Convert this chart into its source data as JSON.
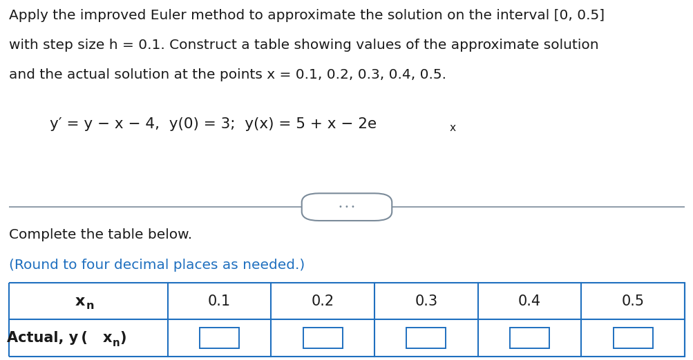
{
  "title_lines": [
    "Apply the improved Euler method to approximate the solution on the interval [0, 0.5]",
    "with step size h = 0.1. Construct a table showing values of the approximate solution",
    "and the actual solution at the points x = 0.1, 0.2, 0.3, 0.4, 0.5."
  ],
  "complete_text": "Complete the table below.",
  "round_text": "(Round to four decimal places as needed.)",
  "table_col_headers": [
    "0.1",
    "0.2",
    "0.3",
    "0.4",
    "0.5"
  ],
  "bg_color": "#ffffff",
  "text_color": "#1a1a1a",
  "blue_color": "#1E6FBF",
  "table_border_color": "#1E6FBF",
  "divider_color": "#7a8a99",
  "ellipsis_dots": "⋅⋅⋅",
  "title_fontsize": 14.5,
  "eq_fontsize": 15.5,
  "complete_fontsize": 14.5,
  "round_fontsize": 14.5,
  "table_header_fontsize": 15,
  "table_data_fontsize": 15,
  "table_label_fontsize": 15
}
